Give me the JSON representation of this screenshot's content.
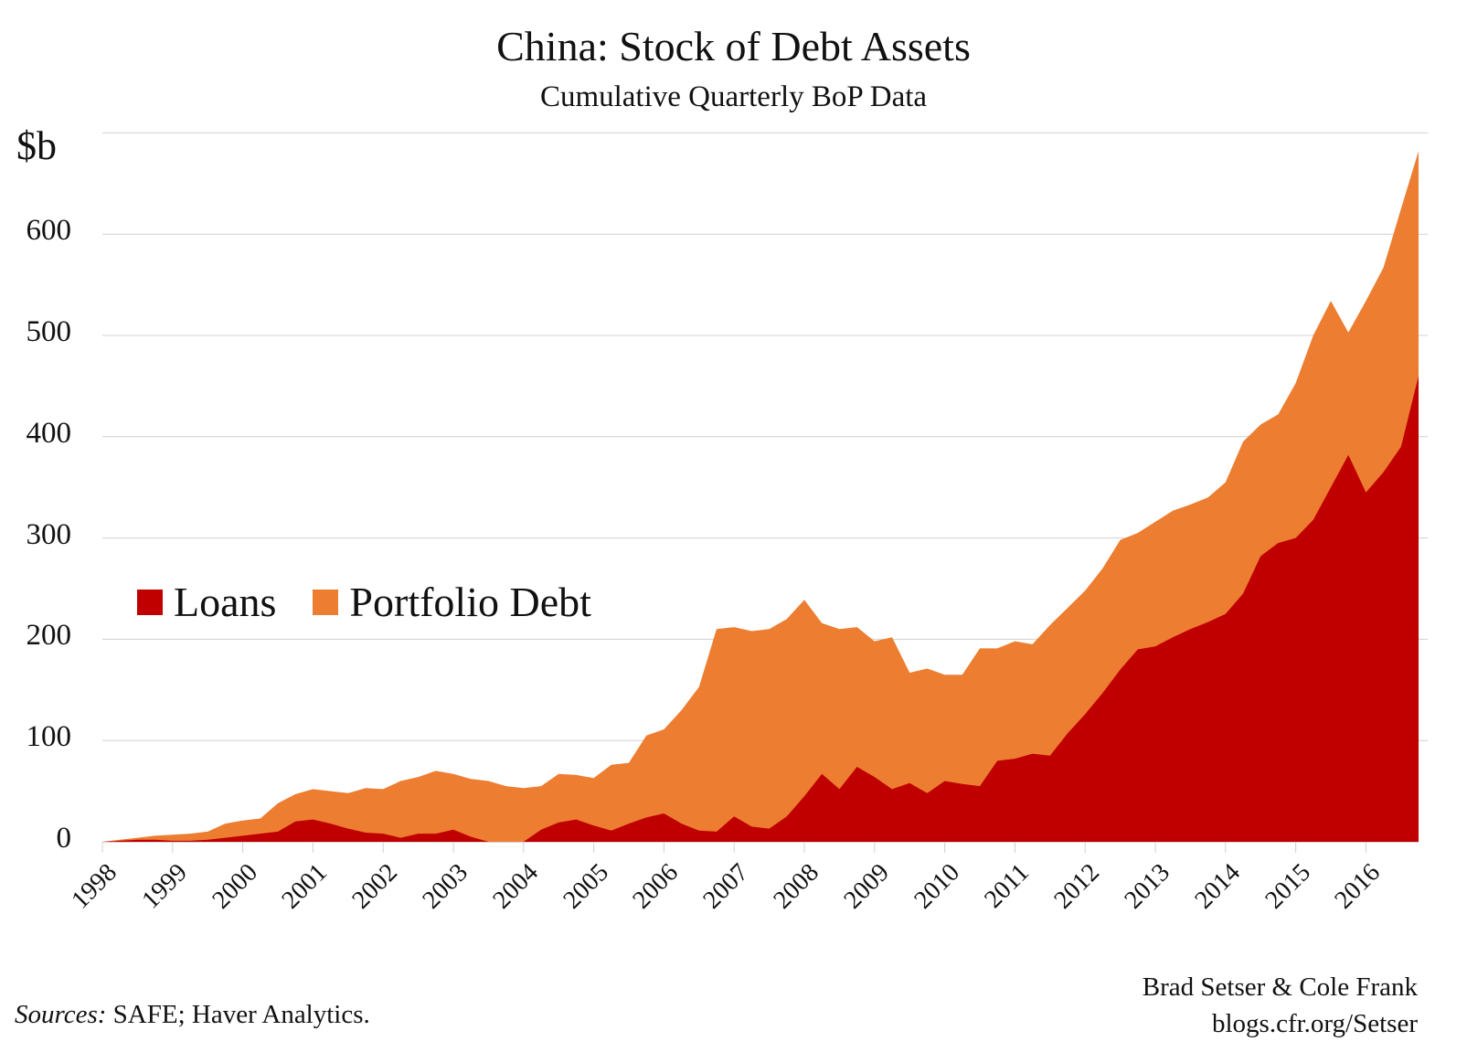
{
  "title": "China: Stock of Debt Assets",
  "subtitle": "Cumulative Quarterly BoP Data",
  "unit_label": "$b",
  "colors": {
    "loans": "#C00000",
    "portfolio_debt": "#ED7D31",
    "grid": "#D0D0D0"
  },
  "legend": [
    {
      "label": "Loans",
      "color": "#C00000"
    },
    {
      "label": "Portfolio Debt",
      "color": "#ED7D31"
    }
  ],
  "footer": {
    "sources_label": "Sources:",
    "sources_text": " SAFE; Haver Analytics.",
    "credit_line1": "Brad Setser & Cole Frank",
    "credit_line2": "blogs.cfr.org/Setser"
  },
  "y_ticks": [
    "0",
    "100",
    "200",
    "300",
    "400",
    "500",
    "600"
  ],
  "x_ticks": [
    "1998",
    "1999",
    "2000",
    "2001",
    "2002",
    "2003",
    "2004",
    "2005",
    "2006",
    "2007",
    "2008",
    "2009",
    "2010",
    "2011",
    "2012",
    "2013",
    "2014",
    "2015",
    "2016"
  ],
  "chart_data": {
    "type": "area",
    "stacked": true,
    "title": "China: Stock of Debt Assets",
    "subtitle": "Cumulative Quarterly BoP Data",
    "xlabel": "",
    "ylabel": "$b",
    "ylim": [
      0,
      700
    ],
    "grid": true,
    "legend_position": "inside-left",
    "x_start": "1998Q1",
    "x_end": "2016Q4",
    "frequency": "quarterly",
    "categories": [
      "1998",
      "1999",
      "2000",
      "2001",
      "2002",
      "2003",
      "2004",
      "2005",
      "2006",
      "2007",
      "2008",
      "2009",
      "2010",
      "2011",
      "2012",
      "2013",
      "2014",
      "2015",
      "2016"
    ],
    "series": [
      {
        "name": "Loans",
        "color": "#C00000",
        "values": [
          0,
          1,
          2,
          2,
          1,
          1,
          2,
          4,
          6,
          8,
          10,
          20,
          22,
          18,
          13,
          9,
          8,
          4,
          8,
          8,
          12,
          5,
          -1,
          -1,
          -1,
          12,
          19,
          22,
          16,
          11,
          18,
          24,
          28,
          18,
          11,
          10,
          25,
          15,
          13,
          25,
          45,
          67,
          52,
          74,
          64,
          52,
          58,
          48,
          60,
          57,
          55,
          80,
          82,
          87,
          85,
          107,
          126,
          147,
          170,
          190,
          193,
          202,
          210,
          217,
          225,
          245,
          282,
          295,
          300,
          318,
          350,
          382,
          345,
          365,
          390,
          460
        ]
      },
      {
        "name": "Portfolio Debt",
        "color": "#ED7D31",
        "stack_total": [
          0,
          2,
          4,
          6,
          7,
          8,
          10,
          18,
          21,
          23,
          38,
          47,
          52,
          50,
          48,
          53,
          52,
          60,
          64,
          70,
          67,
          62,
          60,
          55,
          53,
          55,
          67,
          66,
          63,
          76,
          78,
          105,
          111,
          130,
          153,
          210,
          212,
          208,
          210,
          220,
          239,
          216,
          210,
          212,
          198,
          202,
          167,
          171,
          165,
          165,
          191,
          191,
          198,
          195,
          214,
          231,
          248,
          270,
          298,
          305,
          316,
          327,
          333,
          340,
          355,
          395,
          412,
          422,
          453,
          500,
          534,
          503,
          534,
          567,
          625,
          682
        ],
        "values": [
          0,
          1,
          2,
          4,
          6,
          7,
          8,
          14,
          15,
          15,
          28,
          27,
          30,
          32,
          35,
          44,
          44,
          56,
          56,
          62,
          55,
          57,
          61,
          56,
          54,
          43,
          48,
          44,
          47,
          65,
          60,
          81,
          83,
          112,
          142,
          200,
          187,
          193,
          197,
          195,
          194,
          149,
          158,
          138,
          134,
          150,
          109,
          123,
          105,
          108,
          136,
          111,
          116,
          108,
          129,
          124,
          122,
          123,
          128,
          115,
          123,
          125,
          123,
          123,
          130,
          150,
          130,
          127,
          153,
          182,
          184,
          121,
          189,
          202,
          235,
          222
        ]
      }
    ]
  }
}
